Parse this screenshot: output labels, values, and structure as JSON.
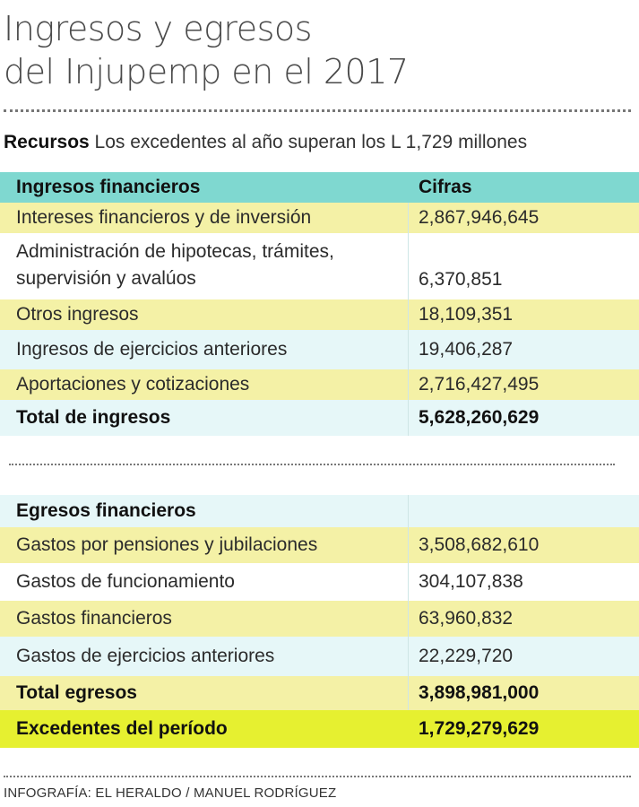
{
  "title": [
    "Ingresos y egresos",
    "del Injupemp en el 2017"
  ],
  "subtitle": {
    "lead": "Recursos",
    "text": " Los excedentes al año superan los L 1,729 millones"
  },
  "colors": {
    "header_row": "#7fd8d0",
    "alt_row_yellow": "#f4f1a6",
    "alt_row_cyan": "#e6f7f8",
    "highlight_row": "#e6f030"
  },
  "chart_data": {
    "type": "table",
    "title": "Ingresos y egresos del Injupemp en el 2017",
    "columns": [
      "Ingresos financieros",
      "Cifras"
    ],
    "sections": [
      {
        "header": "Ingresos financieros",
        "header_value": "Cifras",
        "rows": [
          {
            "label": "Intereses financieros y de inversión",
            "value": "2,867,946,645"
          },
          {
            "label": "Administración de hipotecas, trámites, supervisión y avalúos",
            "value": "6,370,851"
          },
          {
            "label": "Otros ingresos",
            "value": "18,109,351"
          },
          {
            "label": "Ingresos de ejercicios anteriores",
            "value": "19,406,287"
          },
          {
            "label": "Aportaciones y cotizaciones",
            "value": "2,716,427,495"
          }
        ],
        "total": {
          "label": "Total de ingresos",
          "value": "5,628,260,629"
        }
      },
      {
        "header": "Egresos financieros",
        "header_value": "",
        "rows": [
          {
            "label": "Gastos por pensiones y jubilaciones",
            "value": "3,508,682,610"
          },
          {
            "label": "Gastos de funcionamiento",
            "value": "304,107,838"
          },
          {
            "label": "Gastos financieros",
            "value": "63,960,832"
          },
          {
            "label": "Gastos de ejercicios anteriores",
            "value": "22,229,720"
          }
        ],
        "total": {
          "label": "Total egresos",
          "value": "3,898,981,000"
        }
      }
    ],
    "result": {
      "label": "Excedentes del período",
      "value": "1,729,279,629"
    }
  },
  "credit": "INFOGRAFÍA: EL HERALDO / MANUEL RODRÍGUEZ"
}
